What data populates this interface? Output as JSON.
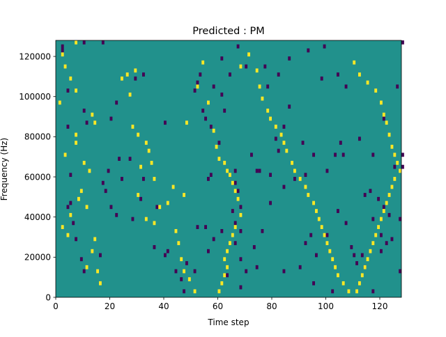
{
  "chart_data": {
    "type": "heatmap",
    "title": "Predicted : PM",
    "xlabel": "Time step",
    "ylabel": "Frequency (Hz)",
    "xlim": [
      0,
      128
    ],
    "ylim": [
      0,
      128000
    ],
    "x_ticks": [
      {
        "value": 0,
        "label": "0"
      },
      {
        "value": 20,
        "label": "20"
      },
      {
        "value": 40,
        "label": "40"
      },
      {
        "value": 60,
        "label": "60"
      },
      {
        "value": 80,
        "label": "80"
      },
      {
        "value": 100,
        "label": "100"
      },
      {
        "value": 120,
        "label": "120"
      }
    ],
    "y_ticks": [
      {
        "value": 0,
        "label": "0"
      },
      {
        "value": 20000,
        "label": "20000"
      },
      {
        "value": 40000,
        "label": "40000"
      },
      {
        "value": 60000,
        "label": "60000"
      },
      {
        "value": 80000,
        "label": "80000"
      },
      {
        "value": 100000,
        "label": "100000"
      },
      {
        "value": 120000,
        "label": "120000"
      }
    ],
    "colormap": "viridis",
    "colors": {
      "low": "#440154",
      "mid": "#21918c",
      "high": "#fde725"
    },
    "background_value": "mid",
    "bin_height_hz": 2000,
    "bins": {
      "low": [
        [
          2,
          124000
        ],
        [
          2,
          122000
        ],
        [
          4,
          102000
        ],
        [
          10,
          126000
        ],
        [
          17,
          126000
        ],
        [
          29,
          108000
        ],
        [
          32,
          110000
        ],
        [
          22,
          96000
        ],
        [
          20,
          88000
        ],
        [
          23,
          68000
        ],
        [
          27,
          68000
        ],
        [
          19,
          62000
        ],
        [
          24,
          58000
        ],
        [
          18,
          52000
        ],
        [
          10,
          92000
        ],
        [
          11,
          86000
        ],
        [
          4,
          84000
        ],
        [
          5,
          60000
        ],
        [
          5,
          46000
        ],
        [
          4,
          44000
        ],
        [
          6,
          36000
        ],
        [
          7,
          28000
        ],
        [
          9,
          18000
        ],
        [
          10,
          12000
        ],
        [
          16,
          20000
        ],
        [
          20,
          44000
        ],
        [
          22,
          40000
        ],
        [
          31,
          48000
        ],
        [
          37,
          44000
        ],
        [
          28,
          38000
        ],
        [
          32,
          58000
        ],
        [
          17,
          56000
        ],
        [
          36,
          24000
        ],
        [
          40,
          20000
        ],
        [
          41,
          22000
        ],
        [
          48,
          16000
        ],
        [
          51,
          12000
        ],
        [
          52,
          34000
        ],
        [
          44,
          12000
        ],
        [
          46,
          8000
        ],
        [
          47,
          2000
        ],
        [
          56,
          58000
        ],
        [
          55,
          88000
        ],
        [
          57,
          60000
        ],
        [
          51,
          102000
        ],
        [
          52,
          106000
        ],
        [
          53,
          110000
        ],
        [
          54,
          92000
        ],
        [
          58,
          104000
        ],
        [
          61,
          118000
        ],
        [
          61,
          100000
        ],
        [
          64,
          110000
        ],
        [
          67,
          124000
        ],
        [
          70,
          114000
        ],
        [
          77,
          114000
        ],
        [
          78,
          104000
        ],
        [
          82,
          110000
        ],
        [
          86,
          118000
        ],
        [
          93,
          122000
        ],
        [
          98,
          108000
        ],
        [
          99,
          124000
        ],
        [
          104,
          110000
        ],
        [
          107,
          104000
        ],
        [
          91,
          76000
        ],
        [
          92,
          60000
        ],
        [
          95,
          70000
        ],
        [
          100,
          62000
        ],
        [
          103,
          70000
        ],
        [
          105,
          76000
        ],
        [
          106,
          70000
        ],
        [
          112,
          78000
        ],
        [
          117,
          70000
        ],
        [
          121,
          88000
        ],
        [
          126,
          104000
        ],
        [
          128,
          126000
        ],
        [
          114,
          50000
        ],
        [
          116,
          52000
        ],
        [
          119,
          48000
        ],
        [
          121,
          44000
        ],
        [
          123,
          40000
        ],
        [
          127,
          38000
        ],
        [
          124,
          28000
        ],
        [
          122,
          26000
        ],
        [
          120,
          22000
        ],
        [
          113,
          20000
        ],
        [
          111,
          16000
        ],
        [
          109,
          24000
        ],
        [
          110,
          20000
        ],
        [
          107,
          36000
        ],
        [
          104,
          42000
        ],
        [
          100,
          30000
        ],
        [
          96,
          20000
        ],
        [
          94,
          30000
        ],
        [
          92,
          26000
        ],
        [
          90,
          14000
        ],
        [
          84,
          12000
        ],
        [
          84,
          54000
        ],
        [
          79,
          60000
        ],
        [
          79,
          46000
        ],
        [
          75,
          62000
        ],
        [
          72,
          70000
        ],
        [
          74,
          62000
        ],
        [
          66,
          62000
        ],
        [
          66,
          56000
        ],
        [
          67,
          52000
        ],
        [
          68,
          44000
        ],
        [
          65,
          42000
        ],
        [
          66,
          36000
        ],
        [
          68,
          32000
        ],
        [
          66,
          26000
        ],
        [
          68,
          18000
        ],
        [
          70,
          12000
        ],
        [
          68,
          4000
        ],
        [
          63,
          10000
        ],
        [
          60,
          76000
        ],
        [
          55,
          34000
        ],
        [
          58,
          28000
        ],
        [
          56,
          22000
        ],
        [
          61,
          32000
        ],
        [
          76,
          32000
        ],
        [
          73,
          24000
        ],
        [
          74,
          14000
        ],
        [
          81,
          78000
        ],
        [
          82,
          72000
        ],
        [
          84,
          84000
        ],
        [
          86,
          94000
        ],
        [
          102,
          2000
        ],
        [
          114,
          14000
        ],
        [
          117,
          2000
        ],
        [
          127,
          12000
        ],
        [
          128,
          70000
        ],
        [
          128,
          64000
        ],
        [
          125,
          64000
        ],
        [
          120,
          30000
        ],
        [
          117,
          38000
        ],
        [
          95,
          6000
        ],
        [
          88,
          58000
        ],
        [
          62,
          92000
        ],
        [
          57,
          84000
        ],
        [
          40,
          86000
        ]
      ],
      "high": [
        [
          2,
          120000
        ],
        [
          3,
          114000
        ],
        [
          5,
          108000
        ],
        [
          7,
          102000
        ],
        [
          7,
          126000
        ],
        [
          1,
          96000
        ],
        [
          13,
          90000
        ],
        [
          7,
          80000
        ],
        [
          7,
          76000
        ],
        [
          14,
          86000
        ],
        [
          3,
          70000
        ],
        [
          10,
          66000
        ],
        [
          12,
          62000
        ],
        [
          9,
          52000
        ],
        [
          8,
          48000
        ],
        [
          11,
          44000
        ],
        [
          5,
          40000
        ],
        [
          2,
          34000
        ],
        [
          4,
          30000
        ],
        [
          14,
          28000
        ],
        [
          13,
          22000
        ],
        [
          11,
          14000
        ],
        [
          15,
          12000
        ],
        [
          16,
          6000
        ],
        [
          24,
          108000
        ],
        [
          26,
          110000
        ],
        [
          29,
          112000
        ],
        [
          27,
          100000
        ],
        [
          28,
          84000
        ],
        [
          30,
          80000
        ],
        [
          33,
          76000
        ],
        [
          34,
          72000
        ],
        [
          35,
          66000
        ],
        [
          31,
          64000
        ],
        [
          36,
          58000
        ],
        [
          30,
          50000
        ],
        [
          33,
          38000
        ],
        [
          36,
          36000
        ],
        [
          38,
          44000
        ],
        [
          41,
          46000
        ],
        [
          43,
          54000
        ],
        [
          44,
          32000
        ],
        [
          45,
          26000
        ],
        [
          46,
          18000
        ],
        [
          47,
          12000
        ],
        [
          49,
          8000
        ],
        [
          51,
          2000
        ],
        [
          47,
          50000
        ],
        [
          48,
          86000
        ],
        [
          52,
          104000
        ],
        [
          54,
          116000
        ],
        [
          56,
          96000
        ],
        [
          58,
          82000
        ],
        [
          59,
          74000
        ],
        [
          60,
          68000
        ],
        [
          62,
          66000
        ],
        [
          63,
          62000
        ],
        [
          64,
          60000
        ],
        [
          65,
          56000
        ],
        [
          66,
          52000
        ],
        [
          67,
          48000
        ],
        [
          68,
          40000
        ],
        [
          66,
          34000
        ],
        [
          65,
          30000
        ],
        [
          64,
          26000
        ],
        [
          63,
          22000
        ],
        [
          62,
          18000
        ],
        [
          63,
          14000
        ],
        [
          62,
          10000
        ],
        [
          61,
          6000
        ],
        [
          60,
          2000
        ],
        [
          68,
          114000
        ],
        [
          71,
          120000
        ],
        [
          74,
          112000
        ],
        [
          75,
          104000
        ],
        [
          76,
          98000
        ],
        [
          78,
          92000
        ],
        [
          79,
          88000
        ],
        [
          81,
          84000
        ],
        [
          83,
          80000
        ],
        [
          84,
          76000
        ],
        [
          85,
          72000
        ],
        [
          87,
          66000
        ],
        [
          88,
          62000
        ],
        [
          90,
          58000
        ],
        [
          92,
          54000
        ],
        [
          93,
          50000
        ],
        [
          95,
          46000
        ],
        [
          96,
          42000
        ],
        [
          97,
          38000
        ],
        [
          98,
          34000
        ],
        [
          99,
          30000
        ],
        [
          100,
          26000
        ],
        [
          101,
          22000
        ],
        [
          102,
          18000
        ],
        [
          103,
          14000
        ],
        [
          104,
          10000
        ],
        [
          106,
          6000
        ],
        [
          108,
          2000
        ],
        [
          110,
          116000
        ],
        [
          112,
          110000
        ],
        [
          115,
          106000
        ],
        [
          118,
          102000
        ],
        [
          120,
          96000
        ],
        [
          121,
          90000
        ],
        [
          122,
          86000
        ],
        [
          123,
          80000
        ],
        [
          124,
          74000
        ],
        [
          125,
          70000
        ],
        [
          126,
          66000
        ],
        [
          127,
          62000
        ],
        [
          125,
          58000
        ],
        [
          124,
          54000
        ],
        [
          123,
          50000
        ],
        [
          122,
          46000
        ],
        [
          121,
          42000
        ],
        [
          120,
          38000
        ],
        [
          119,
          34000
        ],
        [
          118,
          30000
        ],
        [
          117,
          26000
        ],
        [
          116,
          22000
        ],
        [
          115,
          18000
        ],
        [
          114,
          14000
        ],
        [
          113,
          10000
        ],
        [
          112,
          6000
        ],
        [
          111,
          2000
        ]
      ]
    }
  }
}
